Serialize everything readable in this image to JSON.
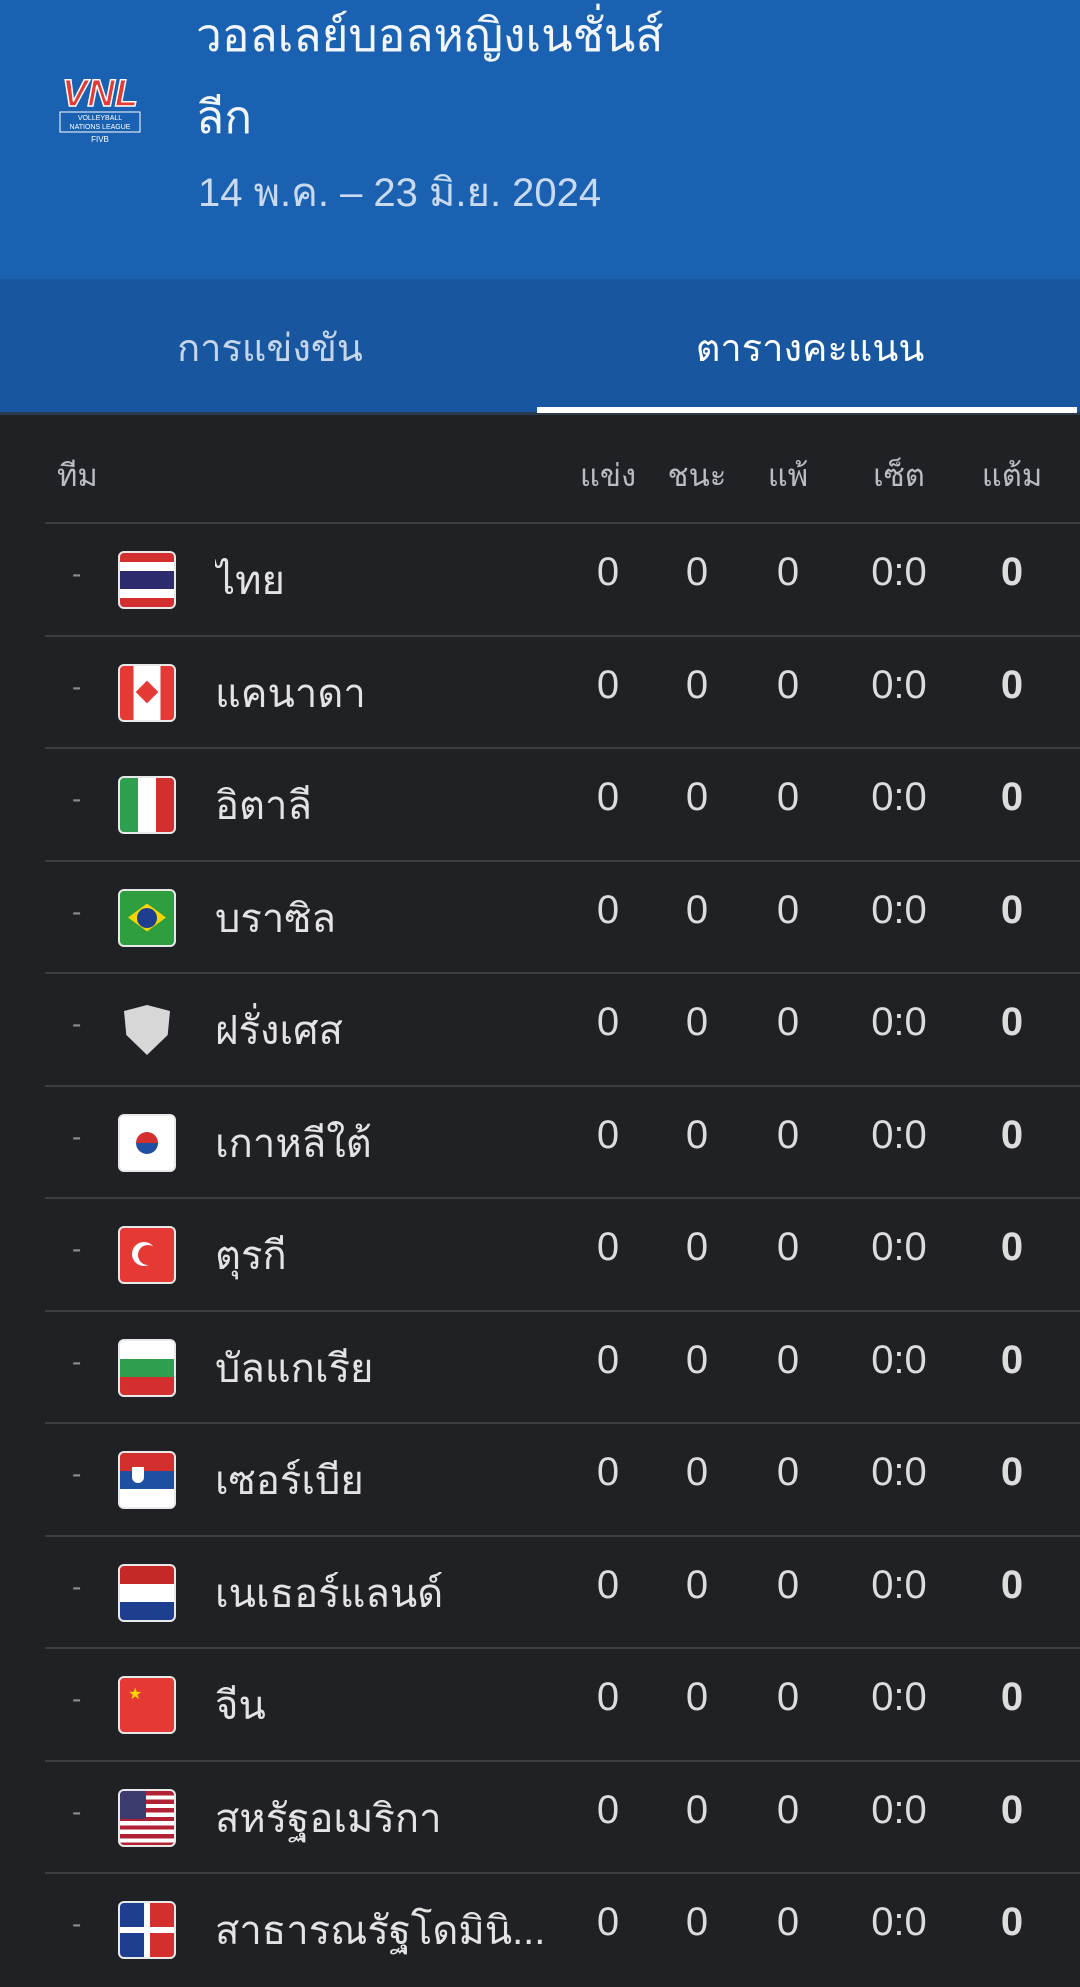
{
  "header": {
    "title": "วอลเลย์บอลหญิงเนชั่นส์ลีก",
    "date_range": "14 พ.ค. – 23 มิ.ย. 2024",
    "logo_text": "VNL VOLLEYBALL NATIONS LEAGUE FIVB"
  },
  "tabs": [
    {
      "label": "การแข่งขัน",
      "active": false
    },
    {
      "label": "ตารางคะแนน",
      "active": true
    }
  ],
  "table": {
    "columns": {
      "team": "ทีม",
      "played": "แข่ง",
      "won": "ชนะ",
      "lost": "แพ้",
      "sets": "เซ็ต",
      "points": "แต้ม"
    },
    "rows": [
      {
        "rank": "-",
        "flag": "thailand",
        "team": "ไทย",
        "played": "0",
        "won": "0",
        "lost": "0",
        "sets": "0:0",
        "points": "0"
      },
      {
        "rank": "-",
        "flag": "canada",
        "team": "แคนาดา",
        "played": "0",
        "won": "0",
        "lost": "0",
        "sets": "0:0",
        "points": "0"
      },
      {
        "rank": "-",
        "flag": "italy",
        "team": "อิตาลี",
        "played": "0",
        "won": "0",
        "lost": "0",
        "sets": "0:0",
        "points": "0"
      },
      {
        "rank": "-",
        "flag": "brazil",
        "team": "บราซิล",
        "played": "0",
        "won": "0",
        "lost": "0",
        "sets": "0:0",
        "points": "0"
      },
      {
        "rank": "-",
        "flag": "shield-placeholder",
        "team": "ฝรั่งเศส",
        "played": "0",
        "won": "0",
        "lost": "0",
        "sets": "0:0",
        "points": "0"
      },
      {
        "rank": "-",
        "flag": "south-korea",
        "team": "เกาหลีใต้",
        "played": "0",
        "won": "0",
        "lost": "0",
        "sets": "0:0",
        "points": "0"
      },
      {
        "rank": "-",
        "flag": "turkey",
        "team": "ตุรกี",
        "played": "0",
        "won": "0",
        "lost": "0",
        "sets": "0:0",
        "points": "0"
      },
      {
        "rank": "-",
        "flag": "bulgaria",
        "team": "บัลแกเรีย",
        "played": "0",
        "won": "0",
        "lost": "0",
        "sets": "0:0",
        "points": "0"
      },
      {
        "rank": "-",
        "flag": "serbia",
        "team": "เซอร์เบีย",
        "played": "0",
        "won": "0",
        "lost": "0",
        "sets": "0:0",
        "points": "0"
      },
      {
        "rank": "-",
        "flag": "netherlands",
        "team": "เนเธอร์แลนด์",
        "played": "0",
        "won": "0",
        "lost": "0",
        "sets": "0:0",
        "points": "0"
      },
      {
        "rank": "-",
        "flag": "china",
        "team": "จีน",
        "played": "0",
        "won": "0",
        "lost": "0",
        "sets": "0:0",
        "points": "0"
      },
      {
        "rank": "-",
        "flag": "usa",
        "team": "สหรัฐอเมริกา",
        "played": "0",
        "won": "0",
        "lost": "0",
        "sets": "0:0",
        "points": "0"
      },
      {
        "rank": "-",
        "flag": "dominican-republic",
        "team": "สาธารณรัฐโดมินิ...",
        "played": "0",
        "won": "0",
        "lost": "0",
        "sets": "0:0",
        "points": "0"
      }
    ]
  }
}
